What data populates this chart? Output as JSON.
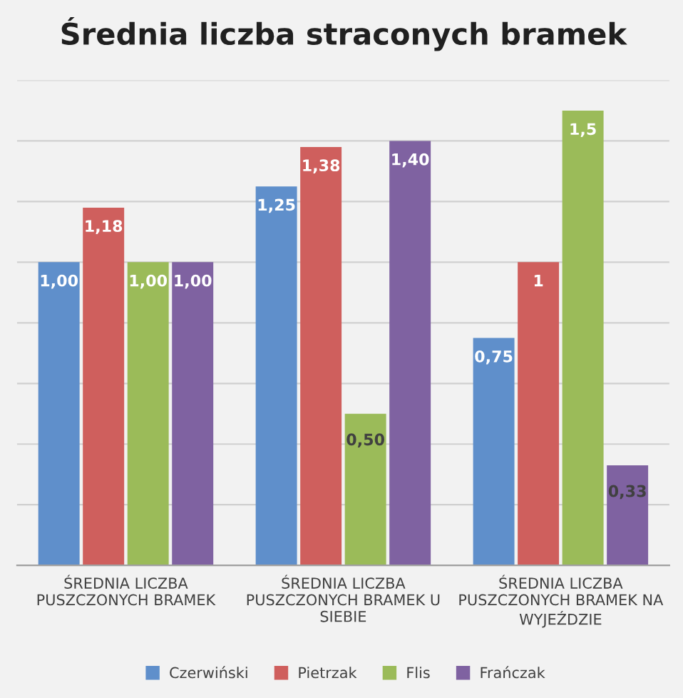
{
  "chart_data": {
    "type": "bar",
    "title": "Średnia liczba straconych bramek",
    "categories": [
      "ŚREDNIA LICZBA\nPUSZCZONYCH BRAMEK",
      "ŚREDNIA LICZBA\nPUSZCZONYCH BRAMEK U\nSIEBIE",
      "ŚREDNIA LICZBA\nPUSZCZONYCH BRAMEK NA\nWYJEŹDZIE"
    ],
    "series": [
      {
        "name": "Czerwiński",
        "color": "#5f8fcb",
        "values": [
          1.0,
          1.25,
          0.75
        ],
        "value_labels": [
          "1,00",
          "1,25",
          "0,75"
        ]
      },
      {
        "name": "Pietrzak",
        "color": "#cf5f5d",
        "values": [
          1.18,
          1.38,
          1.0
        ],
        "value_labels": [
          "1,18",
          "1,38",
          "1"
        ]
      },
      {
        "name": "Flis",
        "color": "#9bbb59",
        "values": [
          1.0,
          0.5,
          1.5
        ],
        "value_labels": [
          "1,00",
          "0,50",
          "1,5"
        ]
      },
      {
        "name": "Frańczak",
        "color": "#7f62a1",
        "values": [
          1.0,
          1.4,
          0.33
        ],
        "value_labels": [
          "1,00",
          "1,40",
          "0,33"
        ]
      }
    ],
    "ylim": [
      0,
      1.6
    ],
    "yticks": [
      {
        "value": 0,
        "label": null
      },
      {
        "value": 0.2,
        "label": null
      },
      {
        "value": 0.4,
        "label": null
      },
      {
        "value": 0.6,
        "label": null
      },
      {
        "value": 0.8,
        "label": null
      },
      {
        "value": 1.0,
        "label": null
      },
      {
        "value": 1.2,
        "label": null
      },
      {
        "value": 1.4,
        "label": null
      },
      {
        "value": 1.6,
        "label": null
      }
    ],
    "grid": "y",
    "legend": "bottom",
    "tick_labels": "x"
  }
}
